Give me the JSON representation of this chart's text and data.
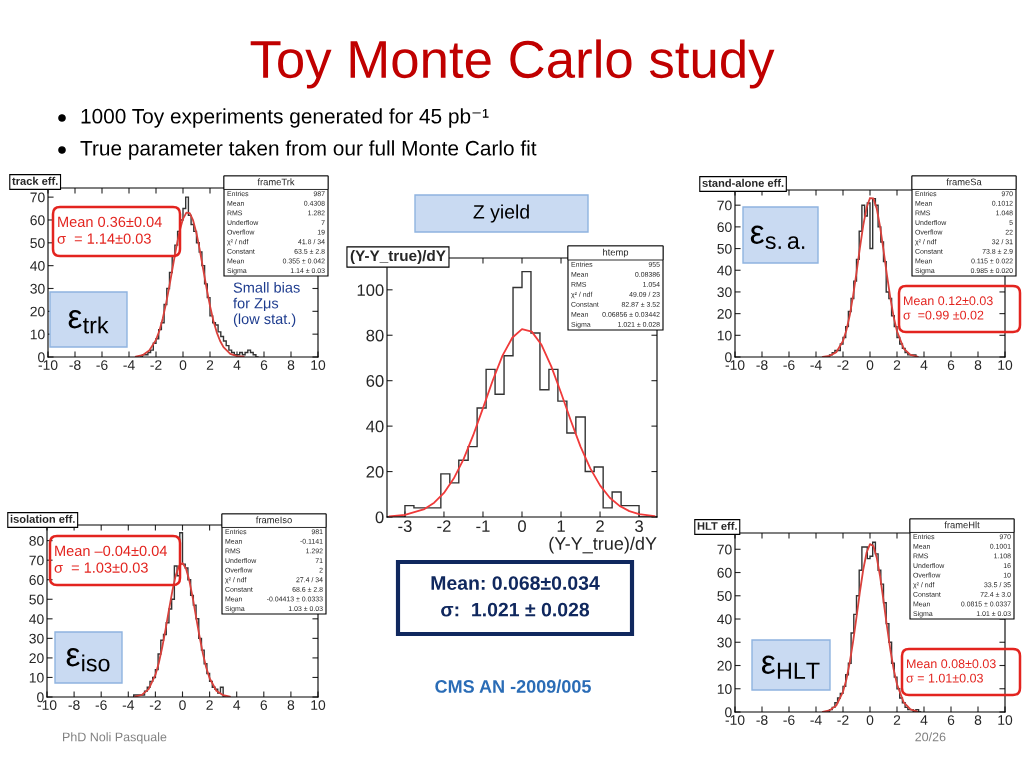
{
  "chart_data": [
    {
      "type": "other",
      "title": "Toy Monte Carlo study",
      "annotations": [
        "1000 Toy experiments generated for 45 pb⁻¹",
        "True parameter taken from our full Monte Carlo fit",
        "CMS AN -2009/005",
        "PhD Noli Pasquale",
        "20/26"
      ]
    },
    {
      "type": "histogram",
      "title": "track eff.",
      "xlim": [
        -10,
        10
      ],
      "ylim": [
        0,
        74
      ],
      "xticks": [
        -10,
        -8,
        -6,
        -4,
        -2,
        0,
        2,
        4,
        6,
        8,
        10
      ],
      "yticks": [
        0,
        10,
        20,
        30,
        40,
        50,
        60,
        70
      ],
      "series": [
        {
          "type": "histogram",
          "color": "#333333",
          "bins": [
            -3.2,
            -3.0,
            -2.8,
            -2.6,
            -2.4,
            -2.2,
            -2.0,
            -1.8,
            -1.6,
            -1.4,
            -1.2,
            -1.0,
            -0.8,
            -0.6,
            -0.4,
            -0.2,
            0,
            0.2,
            0.4,
            0.6,
            0.8,
            1.0,
            1.2,
            1.4,
            1.6,
            1.8,
            2.0,
            2.2,
            2.4,
            2.6,
            2.8,
            3.0,
            3.2,
            3.4,
            3.6,
            3.8,
            4.0,
            4.2,
            4.4,
            4.6,
            4.8,
            5.0,
            5.2,
            5.4,
            5.6
          ],
          "values": [
            0,
            1,
            1,
            2,
            3,
            6,
            8,
            12,
            15,
            23,
            30,
            37,
            44,
            49,
            55,
            60,
            65,
            70,
            62,
            58,
            55,
            50,
            46,
            40,
            32,
            26,
            18,
            15,
            14,
            11,
            9,
            7,
            5,
            3,
            2,
            1,
            1,
            2,
            1,
            2,
            3,
            2,
            1,
            0
          ]
        },
        {
          "type": "line",
          "color": "#d9413c",
          "x": [
            -3.5,
            -3,
            -2.5,
            -2,
            -1.75,
            -1.5,
            -1.25,
            -1,
            -0.75,
            -0.5,
            -0.25,
            0,
            0.25,
            0.5,
            0.75,
            1,
            1.25,
            1.5,
            1.75,
            2,
            2.25,
            2.5,
            2.75,
            3,
            3.5,
            4,
            4.5
          ],
          "values": [
            0.2,
            0.8,
            2.8,
            7.5,
            11.5,
            16.9,
            23.6,
            31.3,
            39.7,
            47.9,
            55.2,
            60.5,
            63.2,
            63.0,
            59.8,
            54.1,
            46.7,
            38.3,
            30.0,
            22.4,
            15.9,
            10.8,
            7.0,
            4.3,
            1.4,
            0.4,
            0.1
          ]
        }
      ],
      "annotations": [
        "Mean 0.36±0.04\nσ  = 1.14±0.03",
        "ε$_{trk}$",
        "Small bias\nfor Zμs\n(low stat.)",
        "frameTrk",
        "Entries",
        "987",
        "Mean",
        "0.4308",
        "RMS",
        "1.282",
        "Underflow",
        "7",
        "Overflow",
        "19",
        "χ² / ndf",
        "41.8 / 34",
        "Constant",
        "63.5 ± 2.8",
        "Mean",
        "0.355 ± 0.042",
        "Sigma",
        "1.14 ± 0.03"
      ]
    },
    {
      "type": "histogram",
      "title": "(Y-Y_true)/dY",
      "xlabel": "(Y-Y_true)/dY",
      "xlim": [
        -3.46,
        3.46
      ],
      "ylim": [
        0,
        114
      ],
      "xticks": [
        -3,
        -2,
        -1,
        0,
        1,
        2,
        3
      ],
      "yticks": [
        0,
        20,
        40,
        60,
        80,
        100
      ],
      "series": [
        {
          "type": "histogram",
          "color": "#333333",
          "bins": [
            -3.46,
            -3.23,
            -3.0,
            -2.77,
            -2.54,
            -2.31,
            -2.08,
            -1.85,
            -1.62,
            -1.38,
            -1.15,
            -0.92,
            -0.69,
            -0.46,
            -0.23,
            0,
            0.23,
            0.46,
            0.69,
            0.92,
            1.15,
            1.38,
            1.62,
            1.85,
            2.08,
            2.31,
            2.54,
            2.77,
            3.0,
            3.23,
            3.46
          ],
          "values": [
            0,
            0,
            5,
            4,
            4,
            4,
            19,
            15,
            25,
            31,
            48,
            65,
            54,
            71,
            101,
            108,
            81,
            56,
            65,
            51,
            37,
            44,
            20,
            22,
            4,
            11,
            5,
            5,
            0,
            0
          ]
        },
        {
          "type": "line",
          "color": "#f03a3a",
          "x": [
            -3.4,
            -3,
            -2.5,
            -2.25,
            -2,
            -1.75,
            -1.5,
            -1.25,
            -1,
            -0.75,
            -0.5,
            -0.25,
            0,
            0.25,
            0.5,
            0.75,
            1,
            1.25,
            1.5,
            1.75,
            2,
            2.25,
            2.5,
            2.75,
            3,
            3.4
          ],
          "values": [
            0.3,
            0.9,
            3.5,
            6.3,
            10.6,
            16.9,
            25.4,
            36.0,
            47.9,
            60.1,
            71.0,
            78.9,
            82.7,
            81.6,
            75.8,
            66.3,
            54.7,
            42.5,
            31.0,
            21.4,
            13.9,
            8.5,
            4.9,
            2.6,
            1.3,
            0.4
          ]
        }
      ],
      "annotations": [
        "Z yield",
        "Mean: 0.068±0.034\nσ:  1.021 ± 0.028",
        "htemp",
        "Entries",
        "955",
        "Mean",
        "0.08386",
        "RMS",
        "1.054",
        "χ² / ndf",
        "49.09 / 23",
        "Constant",
        "82.87 ± 3.52",
        "Mean",
        "0.06856 ± 0.03442",
        "Sigma",
        "1.021 ± 0.028"
      ]
    },
    {
      "type": "histogram",
      "title": "stand-alone eff.",
      "xlim": [
        -10,
        10
      ],
      "ylim": [
        0,
        77
      ],
      "xticks": [
        -10,
        -8,
        -6,
        -4,
        -2,
        0,
        2,
        4,
        6,
        8,
        10
      ],
      "yticks": [
        0,
        10,
        20,
        30,
        40,
        50,
        60,
        70
      ],
      "series": [
        {
          "type": "histogram",
          "color": "#333333",
          "bins": [
            -3.2,
            -3.0,
            -2.8,
            -2.6,
            -2.4,
            -2.2,
            -2.0,
            -1.8,
            -1.6,
            -1.4,
            -1.2,
            -1.0,
            -0.8,
            -0.6,
            -0.4,
            -0.2,
            0,
            0.2,
            0.4,
            0.6,
            0.8,
            1.0,
            1.2,
            1.4,
            1.6,
            1.8,
            2.0,
            2.2,
            2.4,
            2.6,
            2.8,
            3.0,
            3.2,
            3.4,
            3.6
          ],
          "values": [
            0,
            1,
            2,
            3,
            3,
            6,
            9,
            14,
            21,
            27,
            35,
            45,
            58,
            70,
            65,
            71,
            50,
            73,
            70,
            60,
            53,
            44,
            30,
            27,
            19,
            14,
            9,
            6,
            4,
            2,
            1,
            1,
            1,
            0
          ]
        },
        {
          "type": "line",
          "color": "#d9413c",
          "x": [
            -3.5,
            -3,
            -2.5,
            -2,
            -1.75,
            -1.5,
            -1.25,
            -1,
            -0.75,
            -0.5,
            -0.25,
            0,
            0.25,
            0.5,
            0.75,
            1,
            1.25,
            1.5,
            1.75,
            2,
            2.5,
            3,
            3.5
          ],
          "values": [
            0.1,
            0.5,
            2.2,
            7.4,
            12.3,
            19.2,
            28.3,
            38.9,
            50.2,
            60.7,
            68.9,
            73.3,
            73.1,
            68.4,
            60.0,
            49.3,
            38.0,
            27.5,
            18.6,
            11.8,
            3.9,
            1.0,
            0.2
          ]
        }
      ],
      "annotations": [
        "ε$_{s.a.}$",
        "Mean 0.12±0.03\nσ  =0.99 ±0.02",
        "frameSa",
        "Entries",
        "970",
        "Mean",
        "0.1012",
        "RMS",
        "1.048",
        "Underflow",
        "5",
        "Overflow",
        "22",
        "χ² / ndf",
        "32 / 31",
        "Constant",
        "73.8 ± 2.9",
        "Mean",
        "0.115 ± 0.022",
        "Sigma",
        "0.985 ± 0.020"
      ]
    },
    {
      "type": "histogram",
      "title": "isolation eff.",
      "xlim": [
        -10,
        10
      ],
      "ylim": [
        0,
        88
      ],
      "xticks": [
        -10,
        -8,
        -6,
        -4,
        -2,
        0,
        2,
        4,
        6,
        8,
        10
      ],
      "yticks": [
        0,
        10,
        20,
        30,
        40,
        50,
        60,
        70,
        80
      ],
      "series": [
        {
          "type": "histogram",
          "color": "#333333",
          "bins": [
            -3.6,
            -3.4,
            -3.2,
            -3.0,
            -2.8,
            -2.6,
            -2.4,
            -2.2,
            -2.0,
            -1.8,
            -1.6,
            -1.4,
            -1.2,
            -1.0,
            -0.8,
            -0.6,
            -0.4,
            -0.2,
            0,
            0.2,
            0.4,
            0.6,
            0.8,
            1.0,
            1.2,
            1.4,
            1.6,
            1.8,
            2.0,
            2.2,
            2.4,
            2.6,
            2.8,
            3.0,
            3.2
          ],
          "values": [
            1,
            1,
            1,
            1,
            3,
            5,
            8,
            10,
            14,
            22,
            29,
            32,
            38,
            45,
            50,
            67,
            62,
            84,
            68,
            66,
            60,
            52,
            47,
            40,
            30,
            24,
            17,
            12,
            8,
            5,
            4,
            2,
            5,
            0
          ]
        },
        {
          "type": "line",
          "color": "#d9413c",
          "x": [
            -3.5,
            -3,
            -2.5,
            -2,
            -1.75,
            -1.5,
            -1.25,
            -1,
            -0.75,
            -0.5,
            -0.25,
            0,
            0.25,
            0.5,
            0.75,
            1,
            1.25,
            1.5,
            1.75,
            2,
            2.5,
            3,
            3.5
          ],
          "values": [
            0.2,
            1.1,
            4.0,
            11.3,
            17.4,
            25.3,
            34.6,
            44.6,
            54.2,
            62.2,
            67.2,
            68.5,
            65.9,
            59.7,
            51.0,
            41.0,
            31.2,
            22.3,
            15.1,
            9.6,
            3.2,
            0.9,
            0.2
          ]
        }
      ],
      "annotations": [
        "Mean –0.04±0.04\nσ  = 1.03±0.03",
        "ε$_{iso}$",
        "frameIso",
        "Entries",
        "981",
        "Mean",
        "-0.1141",
        "RMS",
        "1.292",
        "Underflow",
        "71",
        "Overflow",
        "2",
        "χ² / ndf",
        "27.4 / 34",
        "Constant",
        "68.6 ± 2.8",
        "Mean",
        "-0.04413 ± 0.0333",
        "Sigma",
        "1.03 ± 0.03"
      ]
    },
    {
      "type": "histogram",
      "title": "HLT eff.",
      "xlim": [
        -10,
        10
      ],
      "ylim": [
        0,
        77
      ],
      "xticks": [
        -10,
        -8,
        -6,
        -4,
        -2,
        0,
        2,
        4,
        6,
        8,
        10
      ],
      "yticks": [
        0,
        10,
        20,
        30,
        40,
        50,
        60,
        70
      ],
      "series": [
        {
          "type": "histogram",
          "color": "#333333",
          "bins": [
            -3.2,
            -3.0,
            -2.8,
            -2.6,
            -2.4,
            -2.2,
            -2.0,
            -1.8,
            -1.6,
            -1.4,
            -1.2,
            -1.0,
            -0.8,
            -0.6,
            -0.4,
            -0.2,
            0,
            0.2,
            0.4,
            0.6,
            0.8,
            1.0,
            1.2,
            1.4,
            1.6,
            1.8,
            2.0,
            2.2,
            2.4,
            2.6,
            2.8,
            3.0,
            3.2,
            3.4,
            3.6,
            3.8
          ],
          "values": [
            0,
            1,
            2,
            4,
            6,
            8,
            11,
            16,
            21,
            34,
            42,
            50,
            61,
            71,
            71,
            66,
            67,
            73,
            68,
            61,
            55,
            47,
            38,
            30,
            21,
            15,
            10,
            6,
            4,
            2,
            1,
            1,
            0,
            1,
            0
          ]
        },
        {
          "type": "line",
          "color": "#d9413c",
          "x": [
            -3.5,
            -3,
            -2.5,
            -2,
            -1.75,
            -1.5,
            -1.25,
            -1,
            -0.75,
            -0.5,
            -0.25,
            0,
            0.25,
            0.5,
            0.75,
            1,
            1.25,
            1.5,
            1.75,
            2,
            2.5,
            3,
            3.5
          ],
          "values": [
            0.1,
            0.7,
            2.8,
            8.7,
            14.0,
            21.3,
            30.4,
            40.8,
            51.6,
            61.3,
            68.6,
            72.2,
            71.4,
            66.4,
            58.2,
            47.9,
            37.1,
            27.0,
            18.5,
            11.9,
            4.1,
            1.1,
            0.2
          ]
        }
      ],
      "annotations": [
        "ε$_{HLT}$",
        "Mean 0.08±0.03\nσ = 1.01±0.03",
        "frameHlt",
        "Entries",
        "970",
        "Mean",
        "0.1001",
        "RMS",
        "1.108",
        "Underflow",
        "16",
        "Overflow",
        "10",
        "χ² / ndf",
        "33.5 / 35",
        "Constant",
        "72.4 ± 3.0",
        "Mean",
        "0.0815 ± 0.0337",
        "Sigma",
        "1.01 ± 0.03"
      ]
    }
  ]
}
